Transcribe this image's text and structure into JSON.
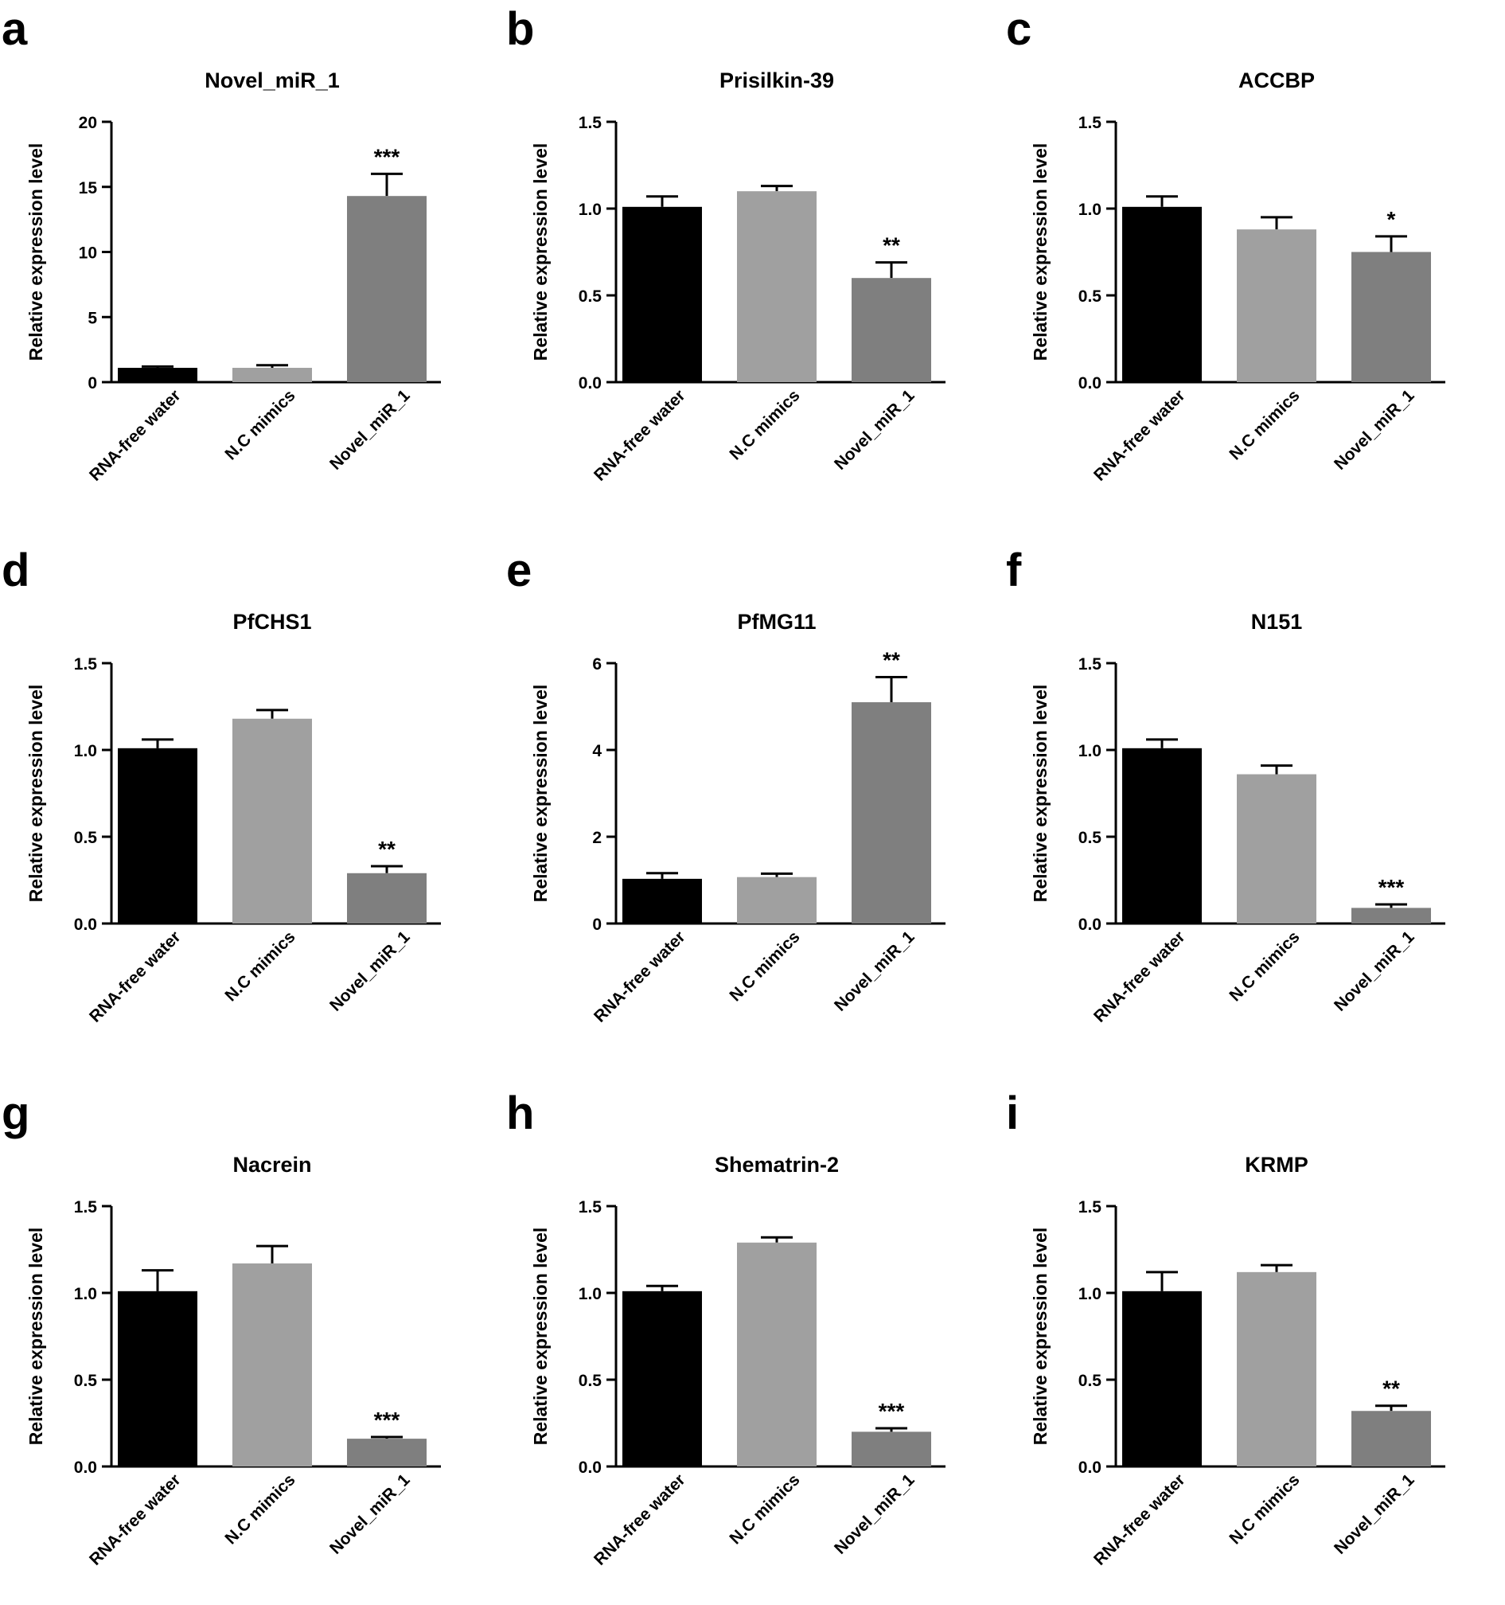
{
  "colors": {
    "bar_fills": [
      "#000000",
      "#a0a0a0",
      "#7f7f7f"
    ],
    "axis": "#000000",
    "background": "#ffffff"
  },
  "chart_data": [
    {
      "panel": "a",
      "type": "bar",
      "title": "Novel_miR_1",
      "xlabel": "",
      "ylabel": "Relative expression level",
      "categories": [
        "RNA-free water",
        "N.C mimics",
        "Novel_miR_1"
      ],
      "values": [
        1.1,
        1.1,
        14.3
      ],
      "errors": [
        0.1,
        0.2,
        1.7
      ],
      "significance": [
        "",
        "",
        "***"
      ],
      "ylim": [
        0,
        20
      ],
      "yticks": [
        0,
        5,
        10,
        15,
        20
      ],
      "ytick_labels": [
        "0",
        "5",
        "10",
        "15",
        "20"
      ]
    },
    {
      "panel": "b",
      "type": "bar",
      "title": "Prisilkin-39",
      "xlabel": "",
      "ylabel": "Relative expression level",
      "categories": [
        "RNA-free water",
        "N.C mimics",
        "Novel_miR_1"
      ],
      "values": [
        1.01,
        1.1,
        0.6
      ],
      "errors": [
        0.06,
        0.03,
        0.09
      ],
      "significance": [
        "",
        "",
        "**"
      ],
      "ylim": [
        0,
        1.5
      ],
      "yticks": [
        0,
        0.5,
        1.0,
        1.5
      ],
      "ytick_labels": [
        "0.0",
        "0.5",
        "1.0",
        "1.5"
      ]
    },
    {
      "panel": "c",
      "type": "bar",
      "title": "ACCBP",
      "xlabel": "",
      "ylabel": "Relative expression level",
      "categories": [
        "RNA-free water",
        "N.C mimics",
        "Novel_miR_1"
      ],
      "values": [
        1.01,
        0.88,
        0.75
      ],
      "errors": [
        0.06,
        0.07,
        0.09
      ],
      "significance": [
        "",
        "",
        "*"
      ],
      "ylim": [
        0,
        1.5
      ],
      "yticks": [
        0,
        0.5,
        1.0,
        1.5
      ],
      "ytick_labels": [
        "0.0",
        "0.5",
        "1.0",
        "1.5"
      ]
    },
    {
      "panel": "d",
      "type": "bar",
      "title": "PfCHS1",
      "xlabel": "",
      "ylabel": "Relative expression level",
      "categories": [
        "RNA-free water",
        "N.C mimics",
        "Novel_miR_1"
      ],
      "values": [
        1.01,
        1.18,
        0.29
      ],
      "errors": [
        0.05,
        0.05,
        0.04
      ],
      "significance": [
        "",
        "",
        "**"
      ],
      "ylim": [
        0,
        1.5
      ],
      "yticks": [
        0,
        0.5,
        1.0,
        1.5
      ],
      "ytick_labels": [
        "0.0",
        "0.5",
        "1.0",
        "1.5"
      ]
    },
    {
      "panel": "e",
      "type": "bar",
      "title": "PfMG11",
      "xlabel": "",
      "ylabel": "Relative expression level",
      "categories": [
        "RNA-free water",
        "N.C mimics",
        "Novel_miR_1"
      ],
      "values": [
        1.03,
        1.07,
        5.1
      ],
      "errors": [
        0.13,
        0.08,
        0.58
      ],
      "significance": [
        "",
        "",
        "**"
      ],
      "ylim": [
        0,
        6
      ],
      "yticks": [
        0,
        2,
        4,
        6
      ],
      "ytick_labels": [
        "0",
        "2",
        "4",
        "6"
      ]
    },
    {
      "panel": "f",
      "type": "bar",
      "title": "N151",
      "xlabel": "",
      "ylabel": "Relative expression level",
      "categories": [
        "RNA-free water",
        "N.C mimics",
        "Novel_miR_1"
      ],
      "values": [
        1.01,
        0.86,
        0.09
      ],
      "errors": [
        0.05,
        0.05,
        0.02
      ],
      "significance": [
        "",
        "",
        "***"
      ],
      "ylim": [
        0,
        1.5
      ],
      "yticks": [
        0,
        0.5,
        1.0,
        1.5
      ],
      "ytick_labels": [
        "0.0",
        "0.5",
        "1.0",
        "1.5"
      ]
    },
    {
      "panel": "g",
      "type": "bar",
      "title": "Nacrein",
      "xlabel": "",
      "ylabel": "Relative expression level",
      "categories": [
        "RNA-free water",
        "N.C mimics",
        "Novel_miR_1"
      ],
      "values": [
        1.01,
        1.17,
        0.16
      ],
      "errors": [
        0.12,
        0.1,
        0.01
      ],
      "significance": [
        "",
        "",
        "***"
      ],
      "ylim": [
        0,
        1.5
      ],
      "yticks": [
        0,
        0.5,
        1.0,
        1.5
      ],
      "ytick_labels": [
        "0.0",
        "0.5",
        "1.0",
        "1.5"
      ]
    },
    {
      "panel": "h",
      "type": "bar",
      "title": "Shematrin-2",
      "xlabel": "",
      "ylabel": "Relative expression level",
      "categories": [
        "RNA-free water",
        "N.C mimics",
        "Novel_miR_1"
      ],
      "values": [
        1.01,
        1.29,
        0.2
      ],
      "errors": [
        0.03,
        0.03,
        0.02
      ],
      "significance": [
        "",
        "",
        "***"
      ],
      "ylim": [
        0,
        1.5
      ],
      "yticks": [
        0,
        0.5,
        1.0,
        1.5
      ],
      "ytick_labels": [
        "0.0",
        "0.5",
        "1.0",
        "1.5"
      ]
    },
    {
      "panel": "i",
      "type": "bar",
      "title": "KRMP",
      "xlabel": "",
      "ylabel": "Relative expression level",
      "categories": [
        "RNA-free water",
        "N.C mimics",
        "Novel_miR_1"
      ],
      "values": [
        1.01,
        1.12,
        0.32
      ],
      "errors": [
        0.11,
        0.04,
        0.03
      ],
      "significance": [
        "",
        "",
        "**"
      ],
      "ylim": [
        0,
        1.5
      ],
      "yticks": [
        0,
        0.5,
        1.0,
        1.5
      ],
      "ytick_labels": [
        "0.0",
        "0.5",
        "1.0",
        "1.5"
      ]
    }
  ]
}
